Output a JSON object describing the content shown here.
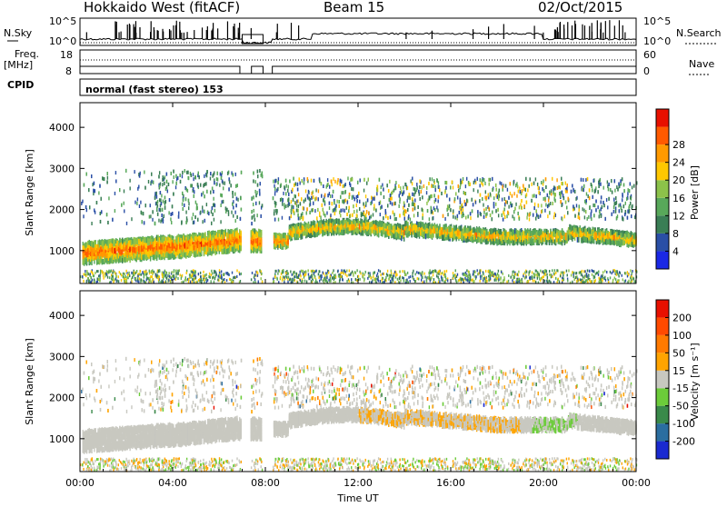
{
  "header": {
    "title": "Hokkaido West (fitACF)",
    "beam": "Beam 15",
    "date": "02/Oct/2015"
  },
  "top_panels": {
    "noise": {
      "left_label": "N.Sky",
      "right_label": "N.Search",
      "scale_top_left": "10^5",
      "scale_bottom_left": "10^0",
      "scale_top_right": "10^5",
      "scale_bottom_right": "10^0"
    },
    "frequency": {
      "left_label": "Freq.",
      "left_unit": "[MHz]",
      "right_label": "Nave",
      "left_top": "18",
      "left_bottom": "8",
      "right_top": "60",
      "right_bottom": "0"
    },
    "cpid": {
      "label": "CPID",
      "value": "normal (fast stereo) 153"
    }
  },
  "chart_data": [
    {
      "type": "heatmap",
      "name": "power",
      "ylabel": "Slant Range [km]",
      "ylim": [
        200,
        4600
      ],
      "yticks": [
        "1000",
        "2000",
        "3000",
        "4000"
      ],
      "xlim_hours": [
        0,
        24
      ],
      "colorbar": {
        "label": "Power [dB]",
        "ticks": [
          "4",
          "8",
          "12",
          "16",
          "20",
          "24",
          "28"
        ],
        "colors": [
          "#1a28e6",
          "#2a4fa6",
          "#3a7e55",
          "#58a85a",
          "#8cc24a",
          "#ffc800",
          "#ff9a00",
          "#ff5a00",
          "#e81000"
        ]
      }
    },
    {
      "type": "heatmap",
      "name": "velocity",
      "ylabel": "Slant Range [km]",
      "ylim": [
        200,
        4600
      ],
      "yticks": [
        "1000",
        "2000",
        "3000",
        "4000"
      ],
      "xlim_hours": [
        0,
        24
      ],
      "xlabel": "Time UT",
      "xticks": [
        "00:00",
        "04:00",
        "08:00",
        "12:00",
        "16:00",
        "20:00",
        "00:00"
      ],
      "colorbar": {
        "label": "Velocity [m s⁻¹]",
        "ticks": [
          "200",
          "100",
          "50",
          "15",
          "-15",
          "-50",
          "-100",
          "-200"
        ],
        "colors": [
          "#1a2ad0",
          "#2b6ea0",
          "#3a8a4a",
          "#6ccc3a",
          "#c8c8c0",
          "#ffa400",
          "#ff7a00",
          "#ff4a00",
          "#e81000"
        ]
      }
    }
  ]
}
